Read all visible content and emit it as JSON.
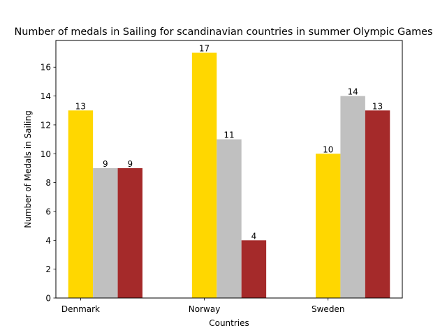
{
  "chart_data": {
    "type": "bar",
    "title": "Number of medals in Sailing for scandinavian countries in summer Olympic Games",
    "xlabel": "Countries",
    "ylabel": "Number of Medals in Sailing",
    "categories": [
      "Denmark",
      "Norway",
      "Sweden"
    ],
    "series": [
      {
        "values": [
          13,
          17,
          10
        ],
        "color": "#FFD700"
      },
      {
        "values": [
          9,
          11,
          14
        ],
        "color": "#C0C0C0"
      },
      {
        "values": [
          9,
          4,
          13
        ],
        "color": "#A52A2A"
      }
    ],
    "ylim": [
      0,
      17.85
    ],
    "yticks": [
      0,
      2,
      4,
      6,
      8,
      10,
      12,
      14,
      16
    ],
    "grid": false,
    "legend": "none"
  }
}
